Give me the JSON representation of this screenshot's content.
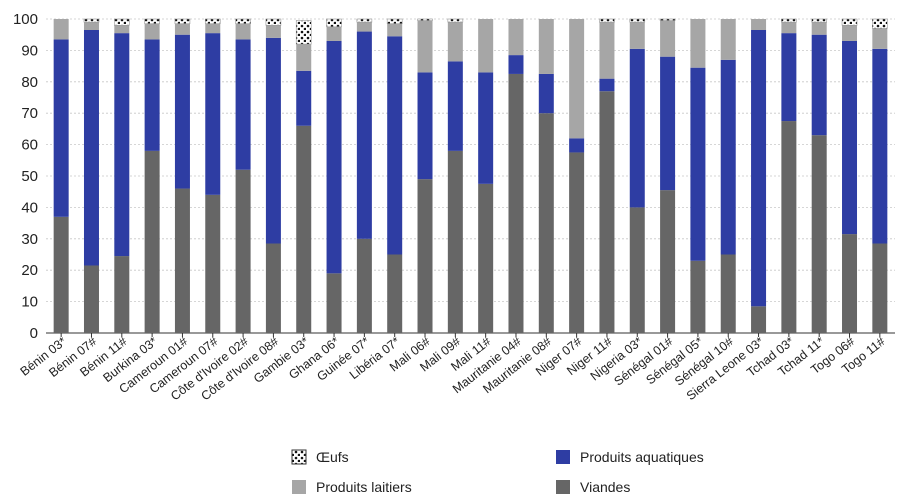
{
  "chart_data": {
    "type": "bar",
    "stacked": true,
    "title": "",
    "xlabel": "",
    "ylabel": "",
    "ylim": [
      0,
      100
    ],
    "yticks": [
      0,
      10,
      20,
      30,
      40,
      50,
      60,
      70,
      80,
      90,
      100
    ],
    "grid": true,
    "legend_position": "bottom",
    "categories": [
      "Bénin 03*",
      "Bénin 07#",
      "Bénin 11#",
      "Burkina 03*",
      "Cameroun 01#",
      "Cameroun 07#",
      "Côte d'Ivoire 02#",
      "Côte d'Ivoire 08#",
      "Gambie 03*",
      "Ghana 06*",
      "Guinée 07*",
      "Libéria 07*",
      "Mali 06#",
      "Mali 09#",
      "Mali 11#",
      "Mauritanie 04#",
      "Mauritanie 08#",
      "Niger 07#",
      "Niger 11#",
      "Nigeria 03*",
      "Sénégal 01#",
      "Sénégal 05*",
      "Sénégal 10#",
      "Sierra Leone 03*",
      "Tchad 03*",
      "Tchad 11*",
      "Togo 06#",
      "Togo 11#"
    ],
    "series": [
      {
        "name": "Viandes",
        "color": "#666666",
        "values": [
          37,
          21.5,
          24.5,
          58,
          46,
          44,
          52,
          28.5,
          66,
          19,
          30,
          25,
          49,
          58,
          47.5,
          82.5,
          70,
          57.5,
          77,
          40,
          45.5,
          23,
          25,
          8.5,
          67.5,
          63,
          31.5,
          28.5
        ]
      },
      {
        "name": "Produits aquatiques",
        "color": "#2e3da3",
        "values": [
          56.5,
          75,
          71,
          35.5,
          49,
          51.5,
          41.5,
          65.5,
          17.5,
          74,
          66,
          69.5,
          34,
          28.5,
          35.5,
          6,
          12.5,
          4.5,
          4,
          50.5,
          42.5,
          61.5,
          62,
          88,
          28,
          32,
          61.5,
          62
        ]
      },
      {
        "name": "Produits laitiers",
        "color": "#a6a6a6",
        "values": [
          6.5,
          2.5,
          2.5,
          5,
          3.5,
          3,
          5,
          4,
          8.5,
          4.5,
          3,
          4,
          16.5,
          12.5,
          17,
          11.5,
          17.5,
          38,
          18,
          8.5,
          11.5,
          15.5,
          13,
          3.5,
          3.5,
          4,
          5,
          6.5
        ]
      },
      {
        "name": "Œufs",
        "color": "#ffffff",
        "pattern": "dots",
        "values": [
          0,
          1,
          2,
          1.5,
          1.5,
          1.5,
          1.5,
          2,
          7.5,
          2.5,
          1,
          1.5,
          0.5,
          1,
          0,
          0,
          0,
          0,
          1,
          1,
          0.5,
          0,
          0,
          0,
          1,
          1,
          2,
          3
        ]
      }
    ]
  },
  "legend": [
    {
      "label": "Œufs",
      "series": 3
    },
    {
      "label": "Produits aquatiques",
      "series": 1
    },
    {
      "label": "Produits laitiers",
      "series": 2
    },
    {
      "label": "Viandes",
      "series": 0
    }
  ]
}
